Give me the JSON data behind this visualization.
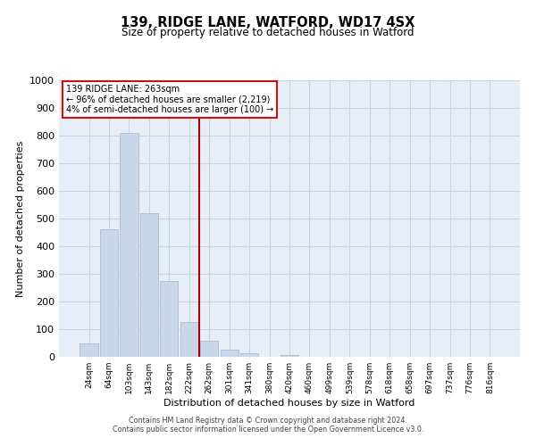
{
  "title": "139, RIDGE LANE, WATFORD, WD17 4SX",
  "subtitle": "Size of property relative to detached houses in Watford",
  "xlabel": "Distribution of detached houses by size in Watford",
  "ylabel": "Number of detached properties",
  "bar_labels": [
    "24sqm",
    "64sqm",
    "103sqm",
    "143sqm",
    "182sqm",
    "222sqm",
    "262sqm",
    "301sqm",
    "341sqm",
    "380sqm",
    "420sqm",
    "460sqm",
    "499sqm",
    "539sqm",
    "578sqm",
    "618sqm",
    "658sqm",
    "697sqm",
    "737sqm",
    "776sqm",
    "816sqm"
  ],
  "bar_values": [
    47,
    460,
    810,
    520,
    275,
    125,
    58,
    25,
    12,
    0,
    8,
    0,
    0,
    0,
    0,
    0,
    0,
    0,
    0,
    0,
    0
  ],
  "bar_color": "#c8d8ea",
  "bar_edgecolor": "#a8bece",
  "vline_index": 6,
  "property_line_label": "139 RIDGE LANE: 263sqm",
  "annotation_line1": "← 96% of detached houses are smaller (2,219)",
  "annotation_line2": "4% of semi-detached houses are larger (100) →",
  "annotation_box_facecolor": "#ffffff",
  "annotation_box_edgecolor": "#cc1111",
  "vline_color": "#aa0000",
  "ylim": [
    0,
    1000
  ],
  "yticks": [
    0,
    100,
    200,
    300,
    400,
    500,
    600,
    700,
    800,
    900,
    1000
  ],
  "background_color": "#ffffff",
  "plot_bg_color": "#e8eef8",
  "grid_color": "#c8d4e4",
  "footer1": "Contains HM Land Registry data © Crown copyright and database right 2024.",
  "footer2": "Contains public sector information licensed under the Open Government Licence v3.0."
}
